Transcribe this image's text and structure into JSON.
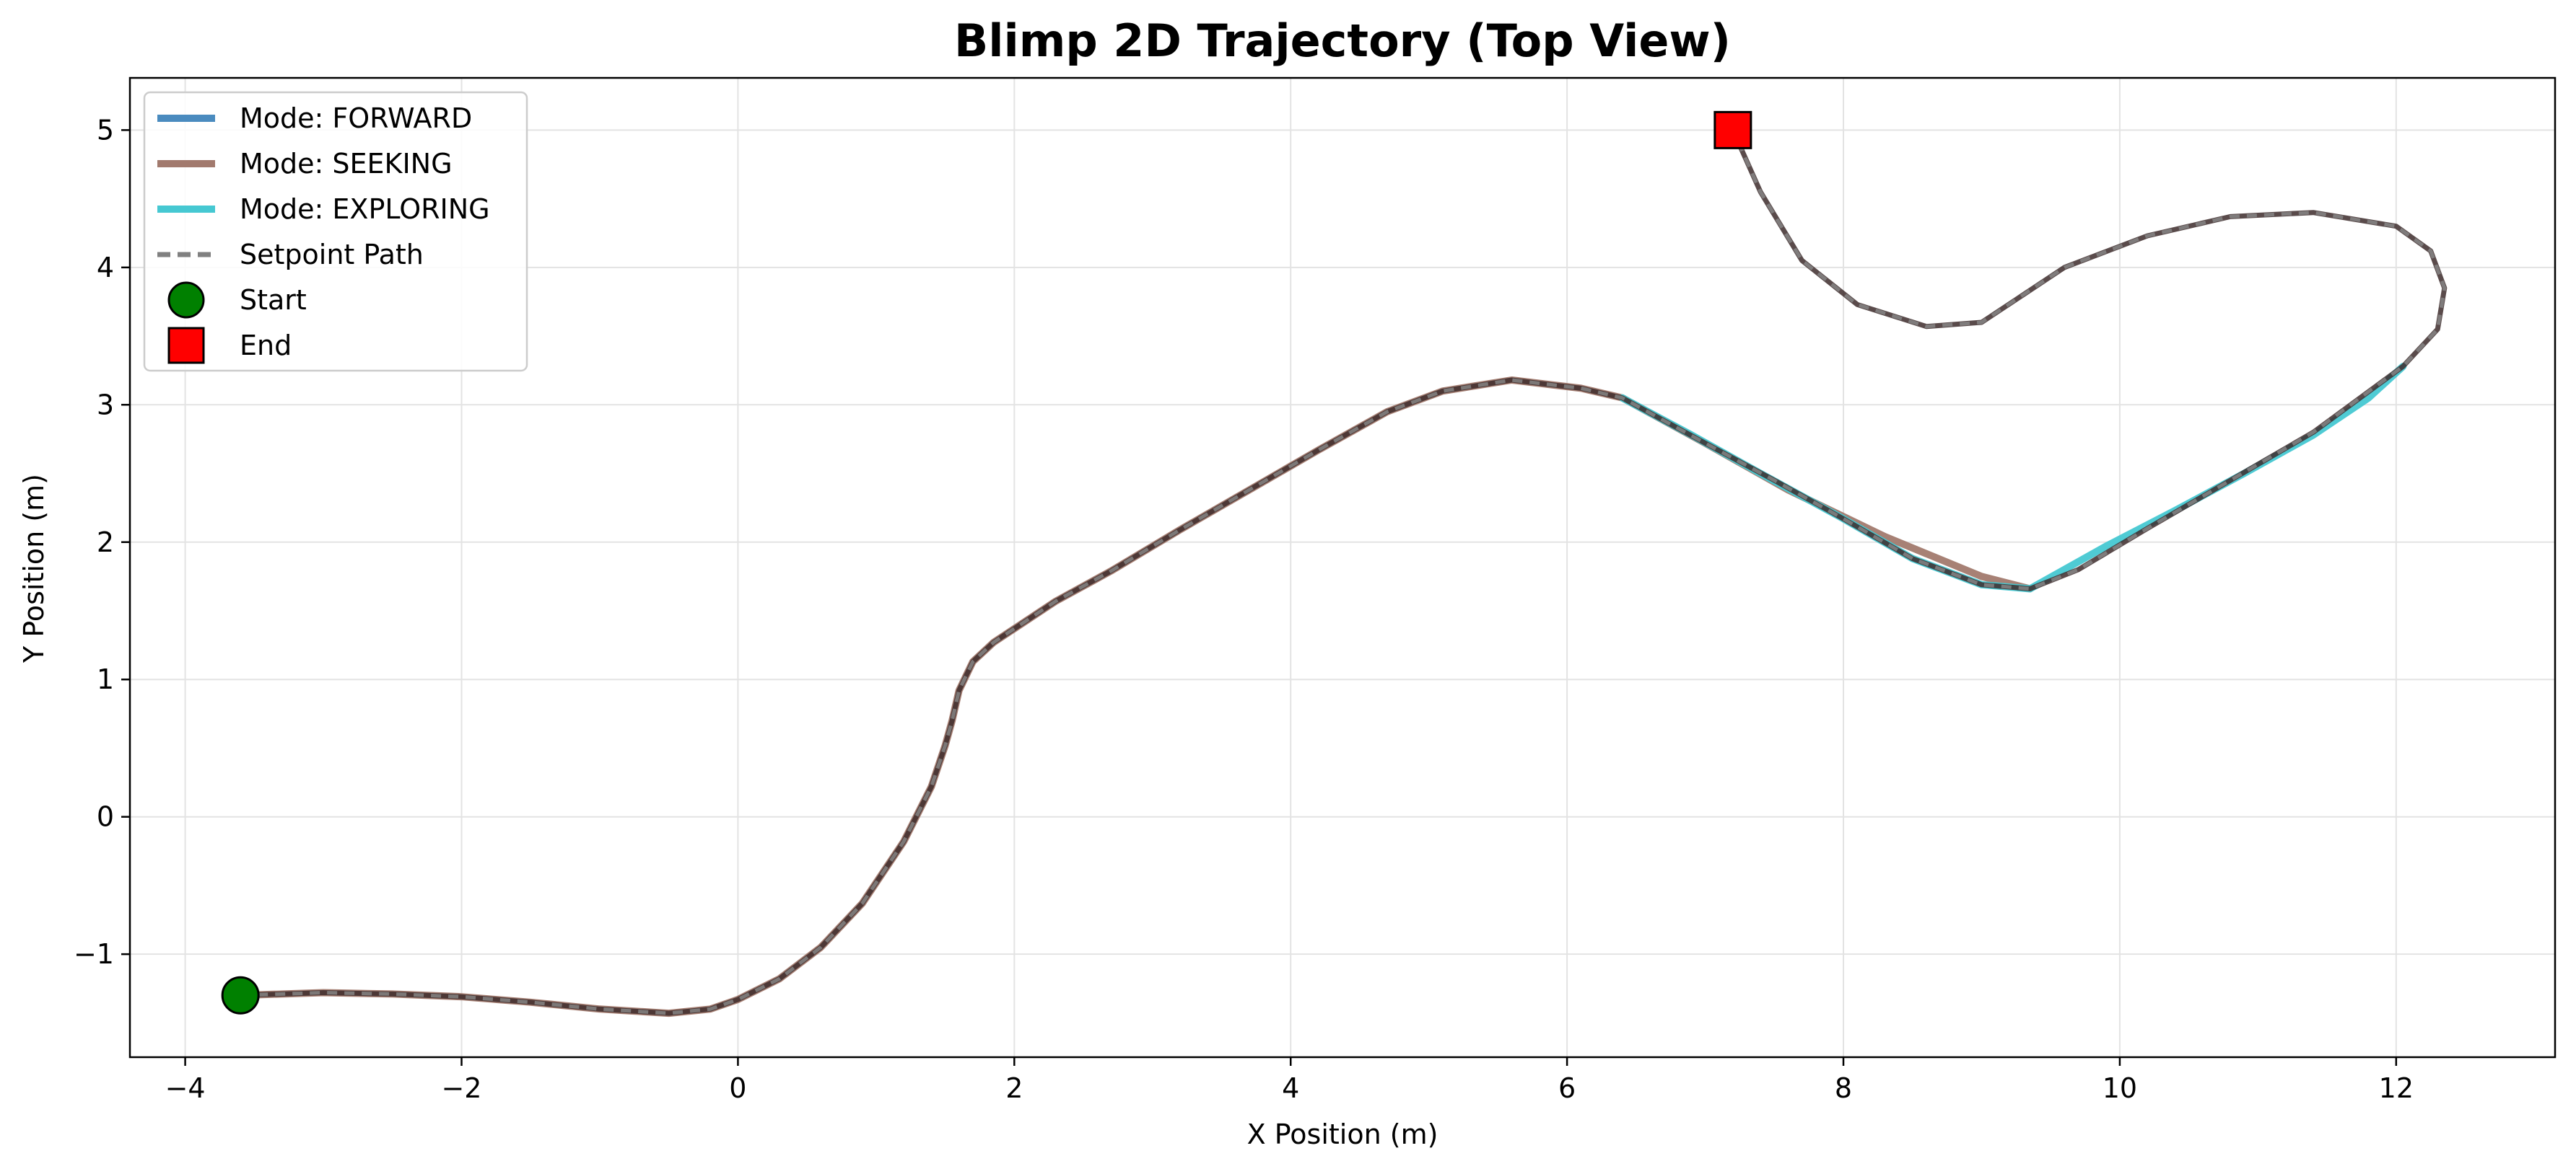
{
  "chart_data": {
    "type": "line",
    "title": "Blimp 2D Trajectory (Top View)",
    "xlabel": "X Position (m)",
    "ylabel": "Y Position (m)",
    "xlim": [
      -4.4,
      13.15
    ],
    "ylim": [
      -1.75,
      5.38
    ],
    "xticks": [
      -4,
      -2,
      0,
      2,
      4,
      6,
      8,
      10,
      12
    ],
    "yticks": [
      -1,
      0,
      1,
      2,
      3,
      4,
      5
    ],
    "grid": true,
    "legend_position": "upper-left",
    "colors": {
      "forward": "#4a8bbf",
      "seeking": "#a27a6e",
      "exploring": "#46c8d2",
      "setpoint": "#888888",
      "actual": "#3d2b2b",
      "start": "#008000",
      "end": "#ff0000"
    },
    "legend": [
      {
        "label": "Mode: FORWARD",
        "kind": "line",
        "color": "#4a8bbf"
      },
      {
        "label": "Mode: SEEKING",
        "kind": "line",
        "color": "#a27a6e"
      },
      {
        "label": "Mode: EXPLORING",
        "kind": "line",
        "color": "#46c8d2"
      },
      {
        "label": "Setpoint Path",
        "kind": "dash",
        "color": "#808080"
      },
      {
        "label": "Start",
        "kind": "circle",
        "color": "#008000"
      },
      {
        "label": "End",
        "kind": "square",
        "color": "#ff0000"
      }
    ],
    "series": [
      {
        "name": "Mode: SEEKING",
        "x": [
          -3.6,
          -3.0,
          -2.5,
          -2.0,
          -1.5,
          -1.0,
          -0.5,
          -0.2,
          0.0,
          0.3,
          0.6,
          0.9,
          1.2,
          1.4,
          1.5,
          1.55,
          1.6,
          1.7,
          1.85,
          2.0,
          2.3,
          2.7,
          3.2,
          3.7,
          4.2,
          4.7,
          5.1,
          5.6,
          6.1,
          6.4,
          7.0,
          7.6,
          8.3,
          9.0,
          9.35
        ],
        "y": [
          -1.3,
          -1.28,
          -1.29,
          -1.31,
          -1.35,
          -1.4,
          -1.43,
          -1.4,
          -1.33,
          -1.18,
          -0.95,
          -0.63,
          -0.18,
          0.22,
          0.52,
          0.7,
          0.92,
          1.13,
          1.27,
          1.37,
          1.57,
          1.79,
          2.09,
          2.38,
          2.67,
          2.95,
          3.1,
          3.18,
          3.12,
          3.05,
          2.72,
          2.38,
          2.04,
          1.75,
          1.66
        ]
      },
      {
        "name": "Mode: EXPLORING",
        "x": [
          6.4,
          6.9,
          7.4,
          8.0,
          8.5,
          9.0,
          9.35,
          9.9,
          10.4,
          10.9,
          11.4,
          11.8,
          12.05
        ],
        "y": [
          3.05,
          2.78,
          2.5,
          2.17,
          1.88,
          1.69,
          1.66,
          1.97,
          2.23,
          2.5,
          2.78,
          3.05,
          3.28
        ]
      },
      {
        "name": "Setpoint Path",
        "x": [
          -3.6,
          -3.0,
          -2.5,
          -2.0,
          -1.5,
          -1.0,
          -0.5,
          -0.2,
          0.0,
          0.3,
          0.6,
          0.9,
          1.2,
          1.4,
          1.5,
          1.55,
          1.6,
          1.7,
          1.85,
          2.0,
          2.3,
          2.7,
          3.2,
          3.7,
          4.2,
          4.7,
          5.1,
          5.6,
          6.1,
          6.4,
          7.0,
          7.5,
          8.0,
          8.5,
          9.0,
          9.35,
          9.7,
          10.2,
          10.8,
          11.4,
          12.05,
          12.3,
          12.35,
          12.25,
          12.0,
          11.4,
          10.8,
          10.2,
          9.6,
          9.3,
          9.0,
          8.6,
          8.1,
          7.7,
          7.4,
          7.2
        ],
        "y": [
          -1.3,
          -1.28,
          -1.29,
          -1.31,
          -1.35,
          -1.4,
          -1.43,
          -1.4,
          -1.33,
          -1.18,
          -0.95,
          -0.63,
          -0.18,
          0.22,
          0.52,
          0.7,
          0.92,
          1.13,
          1.27,
          1.37,
          1.57,
          1.79,
          2.09,
          2.38,
          2.67,
          2.95,
          3.1,
          3.18,
          3.12,
          3.05,
          2.72,
          2.45,
          2.17,
          1.88,
          1.69,
          1.66,
          1.8,
          2.1,
          2.45,
          2.8,
          3.28,
          3.55,
          3.85,
          4.12,
          4.3,
          4.4,
          4.37,
          4.23,
          4.0,
          3.8,
          3.6,
          3.57,
          3.73,
          4.05,
          4.55,
          5.0
        ]
      }
    ],
    "markers": {
      "start": {
        "label": "Start",
        "x": -3.6,
        "y": -1.3
      },
      "end": {
        "label": "End",
        "x": 7.2,
        "y": 5.0
      }
    }
  }
}
